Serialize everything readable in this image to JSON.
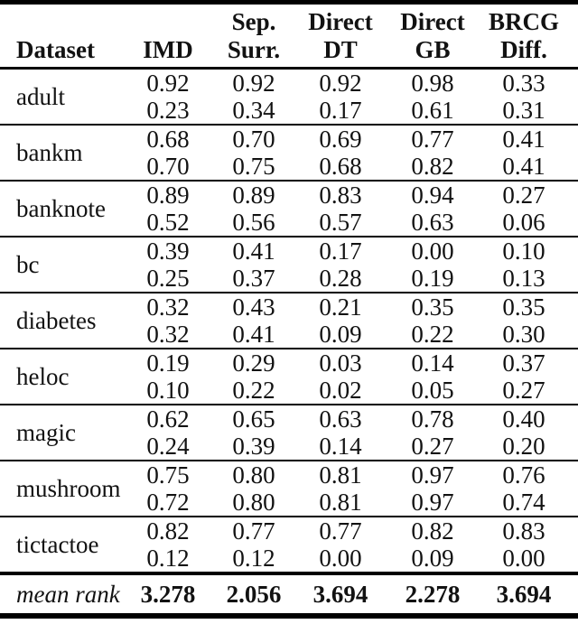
{
  "page": {
    "background": "#ffffff",
    "text_color": "#121212",
    "rule_color": "#000000"
  },
  "table": {
    "headers": [
      {
        "line1": "",
        "line2": "Dataset"
      },
      {
        "line1": "",
        "line2": "IMD"
      },
      {
        "line1": "Sep.",
        "line2": "Surr."
      },
      {
        "line1": "Direct",
        "line2": "DT"
      },
      {
        "line1": "Direct",
        "line2": "GB"
      },
      {
        "line1": "BRCG",
        "line2": "Diff."
      }
    ],
    "groups": [
      {
        "dataset": "adult",
        "rows": [
          [
            "0.92",
            "0.92",
            "0.92",
            "0.98",
            "0.33"
          ],
          [
            "0.23",
            "0.34",
            "0.17",
            "0.61",
            "0.31"
          ]
        ]
      },
      {
        "dataset": "bankm",
        "rows": [
          [
            "0.68",
            "0.70",
            "0.69",
            "0.77",
            "0.41"
          ],
          [
            "0.70",
            "0.75",
            "0.68",
            "0.82",
            "0.41"
          ]
        ]
      },
      {
        "dataset": "banknote",
        "rows": [
          [
            "0.89",
            "0.89",
            "0.83",
            "0.94",
            "0.27"
          ],
          [
            "0.52",
            "0.56",
            "0.57",
            "0.63",
            "0.06"
          ]
        ]
      },
      {
        "dataset": "bc",
        "rows": [
          [
            "0.39",
            "0.41",
            "0.17",
            "0.00",
            "0.10"
          ],
          [
            "0.25",
            "0.37",
            "0.28",
            "0.19",
            "0.13"
          ]
        ]
      },
      {
        "dataset": "diabetes",
        "rows": [
          [
            "0.32",
            "0.43",
            "0.21",
            "0.35",
            "0.35"
          ],
          [
            "0.32",
            "0.41",
            "0.09",
            "0.22",
            "0.30"
          ]
        ]
      },
      {
        "dataset": "heloc",
        "rows": [
          [
            "0.19",
            "0.29",
            "0.03",
            "0.14",
            "0.37"
          ],
          [
            "0.10",
            "0.22",
            "0.02",
            "0.05",
            "0.27"
          ]
        ]
      },
      {
        "dataset": "magic",
        "rows": [
          [
            "0.62",
            "0.65",
            "0.63",
            "0.78",
            "0.40"
          ],
          [
            "0.24",
            "0.39",
            "0.14",
            "0.27",
            "0.20"
          ]
        ]
      },
      {
        "dataset": "mushroom",
        "rows": [
          [
            "0.75",
            "0.80",
            "0.81",
            "0.97",
            "0.76"
          ],
          [
            "0.72",
            "0.80",
            "0.81",
            "0.97",
            "0.74"
          ]
        ]
      },
      {
        "dataset": "tictactoe",
        "rows": [
          [
            "0.82",
            "0.77",
            "0.77",
            "0.82",
            "0.83"
          ],
          [
            "0.12",
            "0.12",
            "0.00",
            "0.09",
            "0.00"
          ]
        ]
      }
    ],
    "footer": {
      "label": "mean rank",
      "values": [
        "3.278",
        "2.056",
        "3.694",
        "2.278",
        "3.694"
      ]
    }
  }
}
